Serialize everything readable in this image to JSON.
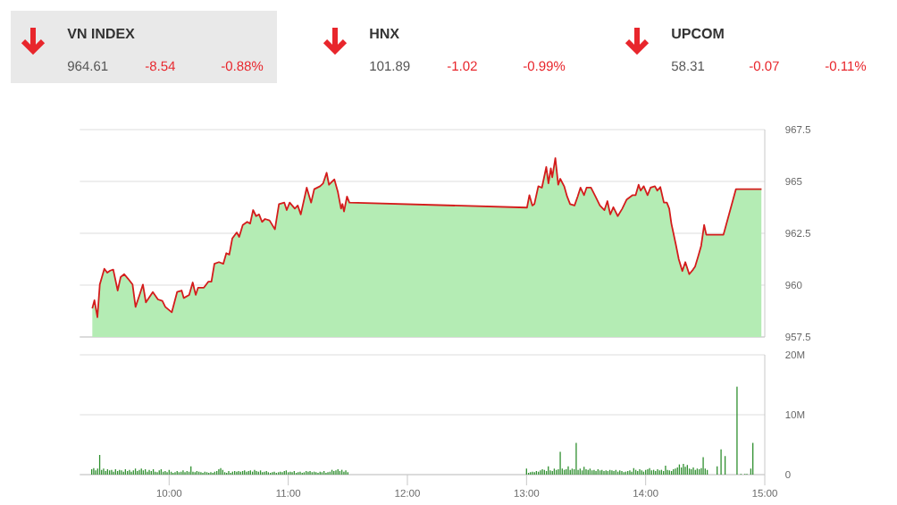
{
  "chart_data": [
    {
      "type": "other",
      "title": "VN INDEX",
      "annotations": [
        "964.61",
        "-8.54",
        "-0.88%"
      ]
    },
    {
      "type": "other",
      "title": "HNX",
      "annotations": [
        "101.89",
        "-1.02",
        "-0.99%"
      ]
    },
    {
      "type": "other",
      "title": "UPCOM",
      "annotations": [
        "58.31",
        "-0.07",
        "-0.11%"
      ]
    },
    {
      "type": "area",
      "color": "#b4ecb4",
      "xlim": [
        9.25,
        15
      ],
      "ylim": [
        957.5,
        967.5
      ],
      "yticks": [
        957.5,
        960,
        962.5,
        965,
        967.5
      ],
      "grid": "y",
      "tick_labels": "y",
      "x": [
        9.355,
        9.373,
        9.398,
        9.418,
        9.456,
        9.481,
        9.505,
        9.531,
        9.568,
        9.593,
        9.623,
        9.655,
        9.693,
        9.718,
        9.756,
        9.78,
        9.805,
        9.863,
        9.906,
        9.943,
        9.968,
        10.022,
        10.067,
        10.105,
        10.123,
        10.168,
        10.198,
        10.223,
        10.243,
        10.292,
        10.33,
        10.355,
        10.38,
        10.418,
        10.455,
        10.48,
        10.505,
        10.53,
        10.568,
        10.588,
        10.618,
        10.655,
        10.68,
        10.705,
        10.73,
        10.755,
        10.78,
        10.805,
        10.843,
        10.888,
        10.922,
        10.967,
        10.987,
        11.012,
        11.055,
        11.08,
        11.105,
        11.155,
        11.192,
        11.218,
        11.267,
        11.293,
        11.322,
        11.342,
        11.387,
        11.417,
        11.443,
        11.455,
        11.468,
        11.493,
        11.513,
        13.004,
        13.024,
        13.049,
        13.066,
        13.099,
        13.129,
        13.166,
        13.184,
        13.204,
        13.216,
        13.242,
        13.266,
        13.283,
        13.316,
        13.341,
        13.366,
        13.403,
        13.429,
        13.453,
        13.483,
        13.504,
        13.541,
        13.579,
        13.616,
        13.654,
        13.679,
        13.703,
        13.729,
        13.766,
        13.804,
        13.841,
        13.891,
        13.916,
        13.941,
        13.958,
        13.984,
        14.016,
        14.041,
        14.078,
        14.098,
        14.123,
        14.153,
        14.178,
        14.198,
        14.216,
        14.253,
        14.278,
        14.308,
        14.333,
        14.366,
        14.398,
        14.415,
        14.441,
        14.466,
        14.491,
        14.509,
        14.653,
        14.758,
        14.973
      ],
      "values": [
        958.88,
        959.27,
        958.45,
        960.03,
        960.79,
        960.6,
        960.7,
        960.75,
        959.74,
        960.39,
        960.53,
        960.31,
        960.03,
        958.95,
        959.6,
        960.03,
        959.17,
        959.67,
        959.31,
        959.24,
        958.95,
        958.69,
        959.67,
        959.74,
        959.38,
        959.53,
        960.13,
        959.53,
        959.88,
        959.88,
        960.17,
        960.17,
        961.03,
        961.11,
        961.03,
        961.54,
        961.47,
        962.25,
        962.54,
        962.33,
        962.9,
        963.05,
        962.97,
        963.62,
        963.33,
        963.41,
        963.05,
        963.19,
        963.12,
        962.69,
        963.91,
        963.98,
        963.62,
        963.98,
        963.69,
        963.84,
        963.41,
        964.7,
        963.98,
        964.63,
        964.77,
        964.91,
        965.42,
        964.84,
        965.1,
        964.48,
        963.69,
        963.91,
        963.55,
        964.27,
        963.98,
        963.74,
        964.34,
        963.84,
        963.91,
        964.77,
        964.7,
        965.7,
        964.91,
        965.63,
        965.2,
        966.13,
        964.84,
        965.13,
        964.77,
        964.27,
        963.91,
        963.84,
        964.27,
        964.7,
        964.34,
        964.7,
        964.7,
        964.27,
        963.84,
        963.62,
        964.05,
        963.41,
        963.76,
        963.33,
        963.69,
        964.13,
        964.34,
        964.34,
        964.84,
        964.56,
        964.77,
        964.34,
        964.7,
        964.77,
        964.56,
        964.73,
        963.98,
        963.98,
        963.69,
        962.97,
        961.97,
        961.25,
        960.68,
        961.11,
        960.53,
        960.75,
        960.89,
        961.39,
        961.9,
        962.9,
        962.43,
        962.43,
        964.63,
        964.63
      ]
    },
    {
      "type": "bar",
      "color": "#2f8f2f",
      "xlim": [
        9.25,
        15
      ],
      "ylim": [
        0,
        20
      ],
      "yticks": [
        0,
        {
          "value": 10,
          "label": "10M"
        },
        {
          "value": 20,
          "label": "20M"
        }
      ],
      "grid": "y",
      "xticks": [
        {
          "value": 10,
          "label": "10:00"
        },
        {
          "value": 11,
          "label": "11:00"
        },
        {
          "value": 12,
          "label": "12:00"
        },
        {
          "value": 13,
          "label": "13:00"
        },
        {
          "value": 14,
          "label": "14:00"
        },
        {
          "value": 15,
          "label": "15:00"
        }
      ],
      "x": [
        9.35,
        9.367,
        9.383,
        9.4,
        9.417,
        9.433,
        9.45,
        9.467,
        9.483,
        9.5,
        9.517,
        9.533,
        9.55,
        9.567,
        9.583,
        9.6,
        9.617,
        9.633,
        9.65,
        9.667,
        9.683,
        9.7,
        9.717,
        9.733,
        9.75,
        9.767,
        9.783,
        9.8,
        9.817,
        9.833,
        9.85,
        9.867,
        9.883,
        9.9,
        9.917,
        9.933,
        9.95,
        9.967,
        9.983,
        10,
        10.017,
        10.033,
        10.05,
        10.067,
        10.083,
        10.1,
        10.117,
        10.133,
        10.15,
        10.167,
        10.183,
        10.2,
        10.217,
        10.233,
        10.25,
        10.267,
        10.283,
        10.3,
        10.317,
        10.333,
        10.35,
        10.367,
        10.383,
        10.4,
        10.417,
        10.433,
        10.45,
        10.467,
        10.483,
        10.5,
        10.517,
        10.533,
        10.55,
        10.567,
        10.583,
        10.6,
        10.617,
        10.633,
        10.65,
        10.667,
        10.683,
        10.7,
        10.717,
        10.733,
        10.75,
        10.767,
        10.783,
        10.8,
        10.817,
        10.833,
        10.85,
        10.867,
        10.883,
        10.9,
        10.917,
        10.933,
        10.95,
        10.967,
        10.983,
        11,
        11.017,
        11.033,
        11.05,
        11.067,
        11.083,
        11.1,
        11.117,
        11.133,
        11.15,
        11.167,
        11.183,
        11.2,
        11.217,
        11.233,
        11.25,
        11.267,
        11.283,
        11.3,
        11.317,
        11.333,
        11.35,
        11.367,
        11.383,
        11.4,
        11.417,
        11.433,
        11.45,
        11.467,
        11.483,
        11.5,
        13,
        13.017,
        13.033,
        13.05,
        13.067,
        13.083,
        13.1,
        13.117,
        13.133,
        13.15,
        13.167,
        13.183,
        13.2,
        13.217,
        13.233,
        13.25,
        13.267,
        13.283,
        13.3,
        13.317,
        13.333,
        13.35,
        13.367,
        13.383,
        13.4,
        13.417,
        13.433,
        13.45,
        13.467,
        13.483,
        13.5,
        13.517,
        13.533,
        13.55,
        13.567,
        13.583,
        13.6,
        13.617,
        13.633,
        13.65,
        13.667,
        13.683,
        13.7,
        13.717,
        13.733,
        13.75,
        13.767,
        13.783,
        13.8,
        13.817,
        13.833,
        13.85,
        13.867,
        13.883,
        13.9,
        13.917,
        13.933,
        13.95,
        13.967,
        13.983,
        14,
        14.017,
        14.033,
        14.05,
        14.067,
        14.083,
        14.1,
        14.117,
        14.133,
        14.15,
        14.167,
        14.183,
        14.2,
        14.217,
        14.233,
        14.25,
        14.267,
        14.283,
        14.3,
        14.317,
        14.333,
        14.35,
        14.367,
        14.383,
        14.4,
        14.417,
        14.433,
        14.45,
        14.467,
        14.483,
        14.5,
        14.517,
        14.6,
        14.633,
        14.667,
        14.767,
        14.8,
        14.833,
        14.85,
        14.883,
        14.9
      ],
      "values": [
        0.9,
        1.1,
        0.7,
        1.0,
        3.3,
        0.8,
        1.0,
        0.6,
        0.9,
        0.7,
        0.8,
        0.5,
        0.9,
        0.6,
        0.8,
        0.7,
        0.5,
        0.9,
        0.6,
        0.8,
        0.5,
        0.7,
        1.0,
        0.6,
        0.8,
        1.0,
        0.7,
        0.9,
        0.5,
        0.8,
        0.6,
        0.9,
        0.5,
        0.4,
        0.7,
        0.9,
        0.5,
        0.6,
        0.4,
        0.8,
        0.5,
        0.3,
        0.4,
        0.6,
        0.4,
        0.5,
        0.7,
        0.4,
        0.6,
        0.5,
        1.4,
        0.5,
        0.4,
        0.6,
        0.5,
        0.4,
        0.3,
        0.5,
        0.4,
        0.3,
        0.4,
        0.3,
        0.5,
        0.6,
        0.9,
        1.1,
        0.8,
        0.4,
        0.3,
        0.6,
        0.3,
        0.5,
        0.6,
        0.5,
        0.6,
        0.5,
        0.6,
        0.7,
        0.5,
        0.6,
        0.7,
        0.5,
        0.8,
        0.6,
        0.5,
        0.7,
        0.4,
        0.5,
        0.6,
        0.4,
        0.3,
        0.4,
        0.5,
        0.3,
        0.4,
        0.5,
        0.4,
        0.6,
        0.7,
        0.4,
        0.5,
        0.4,
        0.6,
        0.3,
        0.4,
        0.5,
        0.3,
        0.4,
        0.6,
        0.5,
        0.6,
        0.4,
        0.5,
        0.4,
        0.3,
        0.5,
        0.4,
        0.6,
        0.3,
        0.4,
        0.5,
        0.8,
        0.6,
        0.7,
        0.9,
        0.6,
        0.8,
        0.5,
        0.7,
        0.4,
        1.0,
        0.3,
        0.4,
        0.5,
        0.4,
        0.6,
        0.5,
        0.7,
        0.9,
        0.8,
        0.6,
        1.4,
        0.7,
        0.6,
        1.0,
        0.8,
        0.9,
        3.8,
        1.0,
        0.8,
        0.9,
        1.4,
        0.8,
        1.0,
        0.9,
        5.3,
        0.8,
        1.0,
        0.7,
        1.3,
        0.9,
        0.8,
        1.0,
        0.7,
        0.8,
        0.6,
        0.9,
        0.7,
        0.8,
        0.6,
        0.7,
        0.6,
        0.8,
        0.7,
        0.6,
        0.8,
        0.5,
        0.7,
        0.6,
        0.4,
        0.5,
        0.6,
        0.7,
        0.5,
        1.1,
        0.8,
        0.6,
        0.9,
        0.7,
        0.5,
        0.8,
        0.9,
        1.1,
        0.7,
        0.8,
        0.6,
        0.9,
        0.7,
        0.8,
        0.6,
        1.5,
        0.8,
        0.7,
        0.6,
        0.9,
        1.0,
        1.2,
        1.7,
        1.2,
        1.8,
        1.3,
        1.6,
        1.0,
        0.9,
        1.2,
        0.8,
        1.0,
        0.9,
        1.1,
        2.9,
        1.0,
        0.8,
        1.4,
        4.2,
        3.1,
        14.7,
        0.1,
        0.1,
        0.1,
        1.0,
        5.3
      ]
    }
  ]
}
